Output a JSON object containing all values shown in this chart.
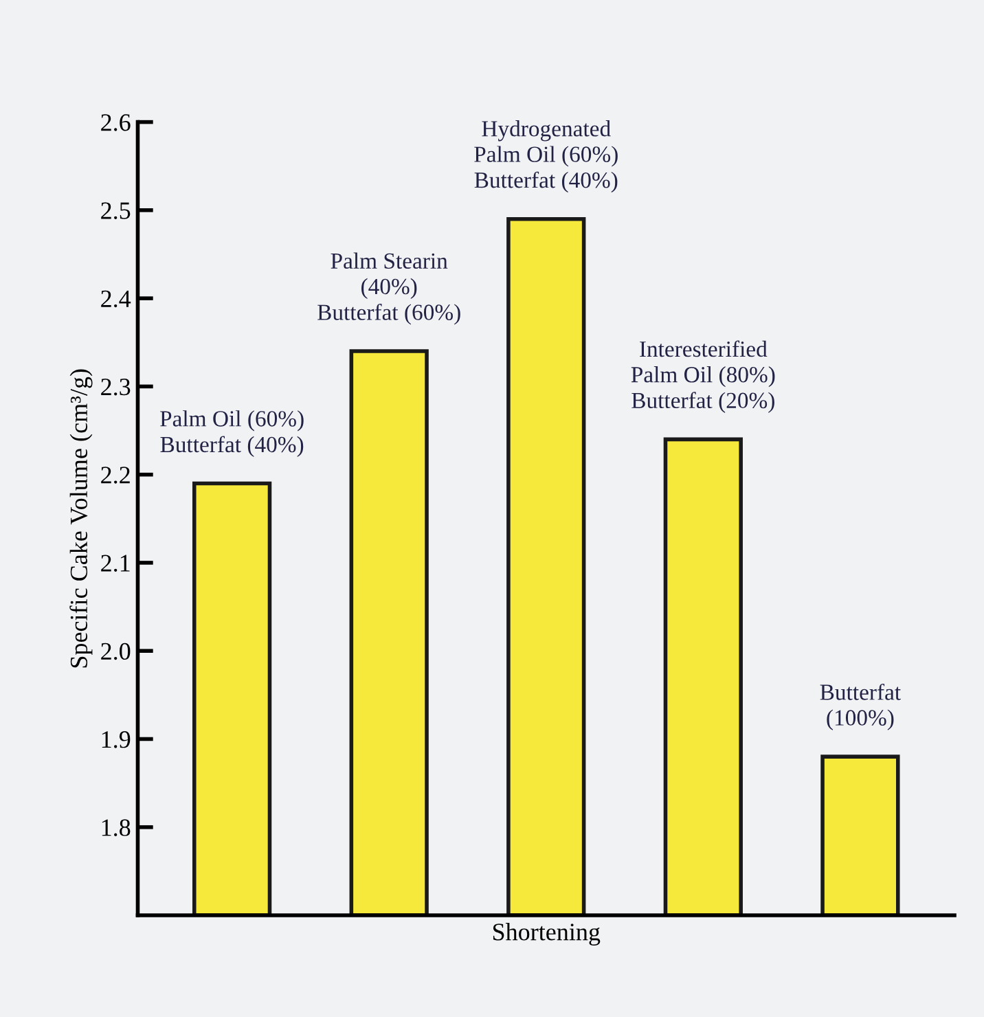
{
  "chart_data": {
    "type": "bar",
    "categories": [
      "Palm Oil (60%)\nButterfat (40%)",
      "Palm Stearin\n(40%)\nButterfat (60%)",
      "Hydrogenated\nPalm Oil (60%)\nButterfat (40%)",
      "Interesterified\nPalm Oil (80%)\nButterfat (20%)",
      "Butterfat\n(100%)"
    ],
    "values": [
      2.19,
      2.34,
      2.49,
      2.24,
      1.88
    ],
    "color": "#f7e93c",
    "xlabel": "Shortening",
    "ylabel": "Specific Cake Volume (cm³/g)",
    "ylim": [
      1.7,
      2.6
    ],
    "yticks": [
      1.8,
      1.9,
      "2.0",
      2.1,
      2.2,
      2.3,
      2.4,
      2.5,
      2.6
    ],
    "grid": false,
    "legend": false
  }
}
